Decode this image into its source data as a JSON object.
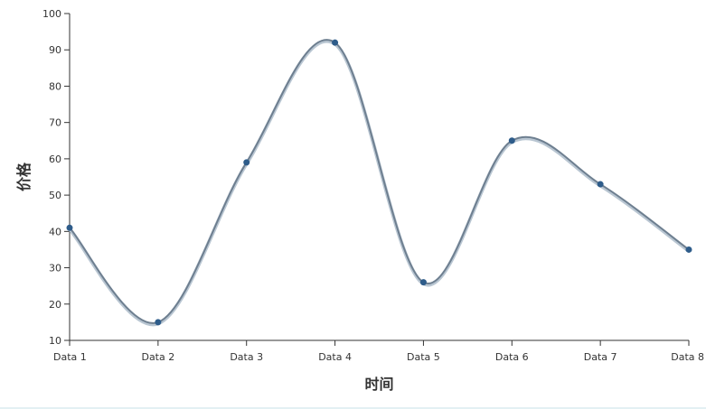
{
  "chart_data": {
    "type": "line",
    "title": "",
    "xlabel": "时间",
    "ylabel": "价格",
    "categories": [
      "Data 1",
      "Data 2",
      "Data 3",
      "Data 4",
      "Data 5",
      "Data 6",
      "Data 7",
      "Data 8"
    ],
    "series": [
      {
        "values": [
          41,
          15,
          59,
          92,
          26,
          65,
          53,
          35
        ]
      }
    ],
    "ylim": [
      10,
      100
    ],
    "yticks": [
      "10",
      "20",
      "30",
      "40",
      "50",
      "60",
      "70",
      "80",
      "90",
      "100"
    ],
    "grid": false,
    "line_color": "#6e7f90",
    "line_shadow_color": "#b9c6d2",
    "point_color": "#2e5c8a",
    "axis_color": "#333333"
  }
}
